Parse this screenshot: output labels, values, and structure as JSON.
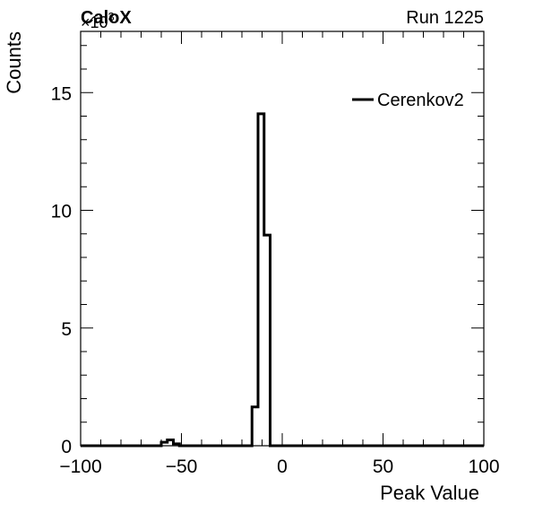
{
  "header": {
    "label_left": "CaloX",
    "label_right": "Run 1225",
    "y_multiplier": "×10",
    "y_multiplier_exp": "3"
  },
  "chart_data": {
    "type": "histogram",
    "xlabel": "Peak Value",
    "ylabel": "Counts",
    "xlim": [
      -100,
      100
    ],
    "ylim": [
      0,
      17.6
    ],
    "y_scale_factor": 1000,
    "x_ticks": [
      -100,
      -50,
      0,
      50,
      100
    ],
    "x_tick_labels": [
      "−100",
      "−50",
      "0",
      "50",
      "100"
    ],
    "y_ticks": [
      0,
      5,
      10,
      15
    ],
    "y_tick_labels": [
      "0",
      "5",
      "10",
      "15"
    ],
    "legend": {
      "position": "top-right",
      "entries": [
        "Cerenkov2"
      ]
    },
    "series": [
      {
        "name": "Cerenkov2",
        "color": "#000000",
        "bin_edges": [
          -100,
          -60,
          -57,
          -54,
          -51,
          -48,
          -15,
          -12,
          -9,
          -6,
          -3,
          100
        ],
        "values": [
          0,
          0.15,
          0.25,
          0.08,
          0,
          0,
          1.65,
          14.1,
          8.95,
          0,
          0
        ]
      }
    ]
  }
}
